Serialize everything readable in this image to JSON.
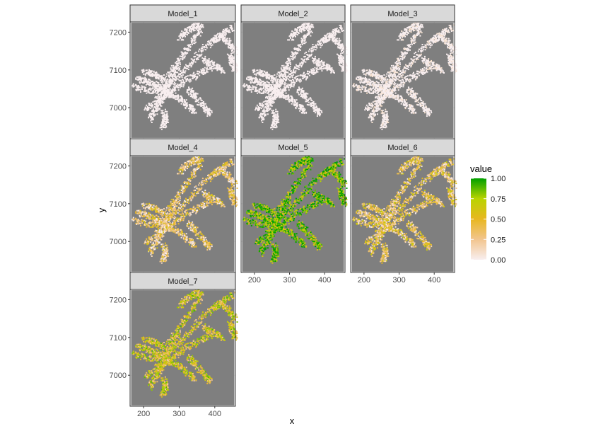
{
  "chart_data": {
    "type": "heatmap",
    "panel_names": [
      "Model_1",
      "Model_2",
      "Model_3",
      "Model_4",
      "Model_5",
      "Model_6",
      "Model_7"
    ],
    "xlabel": "x",
    "ylabel": "y",
    "xticks": [
      200,
      300,
      400
    ],
    "yticks": [
      7000,
      7100,
      7200
    ],
    "xlim": [
      162,
      458
    ],
    "ylim": [
      6918,
      7227
    ],
    "legend": {
      "title": "value",
      "position": "right",
      "breaks": [
        "0.00",
        "0.25",
        "0.50",
        "0.75",
        "1.00"
      ],
      "colors": [
        "#f8eeef",
        "#f2c58e",
        "#e8b721",
        "#b9d400",
        "#00a000"
      ]
    },
    "panel_background": "#7f7f7f",
    "panel_mean_value": [
      0.0,
      0.0,
      0.02,
      0.3,
      0.85,
      0.35,
      0.55
    ]
  }
}
